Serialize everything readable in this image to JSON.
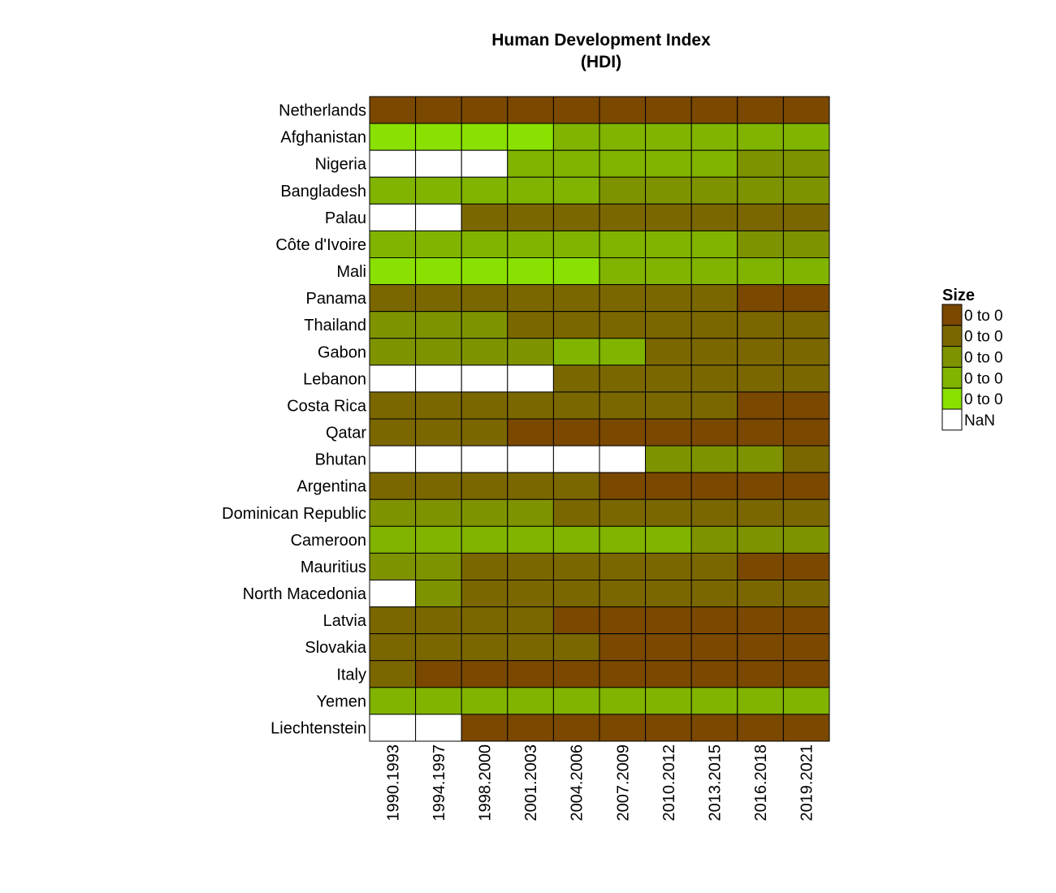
{
  "chart_data": {
    "type": "heatmap",
    "title_lines": [
      "Human Development Index",
      "(HDI)"
    ],
    "rows": [
      "Netherlands",
      "Afghanistan",
      "Nigeria",
      "Bangladesh",
      "Palau",
      "Côte d'Ivoire",
      "Mali",
      "Panama",
      "Thailand",
      "Gabon",
      "Lebanon",
      "Costa Rica",
      "Qatar",
      "Bhutan",
      "Argentina",
      "Dominican Republic",
      "Cameroon",
      "Mauritius",
      "North Macedonia",
      "Latvia",
      "Slovakia",
      "Italy",
      "Yemen",
      "Liechtenstein"
    ],
    "columns": [
      "1990.1993",
      "1994.1997",
      "1998.2000",
      "2001.2003",
      "2004.2006",
      "2007.2009",
      "2010.2012",
      "2013.2015",
      "2016.2018",
      "2019.2021"
    ],
    "legend": {
      "title": "Size",
      "bins": [
        {
          "label": "0 to 0",
          "color": "#7b4800"
        },
        {
          "label": "0 to 0",
          "color": "#7b6700"
        },
        {
          "label": "0 to 0",
          "color": "#7f9300"
        },
        {
          "label": "0 to 0",
          "color": "#80b400"
        },
        {
          "label": "0 to 0",
          "color": "#8ae000"
        },
        {
          "label": "NaN",
          "color": "#ffffff"
        }
      ]
    },
    "values": [
      [
        0,
        0,
        0,
        0,
        0,
        0,
        0,
        0,
        0,
        0
      ],
      [
        4,
        4,
        4,
        4,
        3,
        3,
        3,
        3,
        3,
        3
      ],
      [
        5,
        5,
        5,
        3,
        3,
        3,
        3,
        3,
        2,
        2
      ],
      [
        3,
        3,
        3,
        3,
        3,
        2,
        2,
        2,
        2,
        2
      ],
      [
        5,
        5,
        1,
        1,
        1,
        1,
        1,
        1,
        1,
        1
      ],
      [
        3,
        3,
        3,
        3,
        3,
        3,
        3,
        3,
        2,
        2
      ],
      [
        4,
        4,
        4,
        4,
        4,
        3,
        3,
        3,
        3,
        3
      ],
      [
        1,
        1,
        1,
        1,
        1,
        1,
        1,
        1,
        0,
        0
      ],
      [
        2,
        2,
        2,
        1,
        1,
        1,
        1,
        1,
        1,
        1
      ],
      [
        2,
        2,
        2,
        2,
        3,
        3,
        1,
        1,
        1,
        1
      ],
      [
        5,
        5,
        5,
        5,
        1,
        1,
        1,
        1,
        1,
        1
      ],
      [
        1,
        1,
        1,
        1,
        1,
        1,
        1,
        1,
        0,
        0
      ],
      [
        1,
        1,
        1,
        0,
        0,
        0,
        0,
        0,
        0,
        0
      ],
      [
        5,
        5,
        5,
        5,
        5,
        5,
        2,
        2,
        2,
        1
      ],
      [
        1,
        1,
        1,
        1,
        1,
        0,
        0,
        0,
        0,
        0
      ],
      [
        2,
        2,
        2,
        2,
        1,
        1,
        1,
        1,
        1,
        1
      ],
      [
        3,
        3,
        3,
        3,
        3,
        3,
        3,
        2,
        2,
        2
      ],
      [
        2,
        2,
        1,
        1,
        1,
        1,
        1,
        1,
        0,
        0
      ],
      [
        5,
        2,
        1,
        1,
        1,
        1,
        1,
        1,
        1,
        1
      ],
      [
        1,
        1,
        1,
        1,
        0,
        0,
        0,
        0,
        0,
        0
      ],
      [
        1,
        1,
        1,
        1,
        1,
        0,
        0,
        0,
        0,
        0
      ],
      [
        1,
        0,
        0,
        0,
        0,
        0,
        0,
        0,
        0,
        0
      ],
      [
        3,
        3,
        3,
        3,
        3,
        3,
        3,
        3,
        3,
        3
      ],
      [
        5,
        5,
        0,
        0,
        0,
        0,
        0,
        0,
        0,
        0
      ]
    ]
  }
}
